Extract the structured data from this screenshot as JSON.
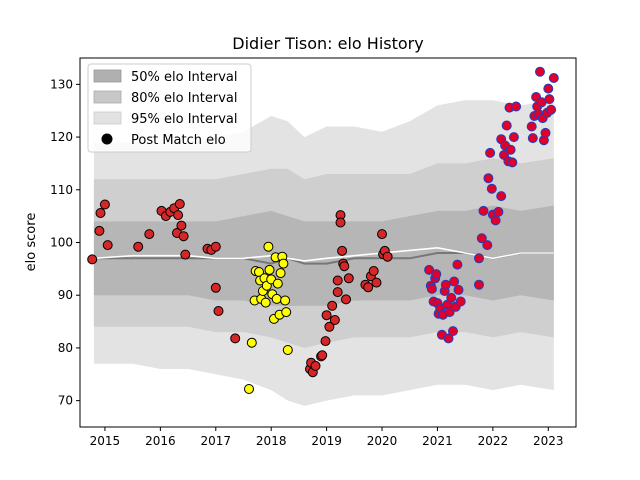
{
  "chart_data": {
    "type": "scatter",
    "title": "Didier Tison: elo History",
    "xlabel": "",
    "ylabel": "elo score",
    "xlim": [
      2014.55,
      2023.5
    ],
    "ylim": [
      65,
      135
    ],
    "x_ticks": [
      2015,
      2016,
      2017,
      2018,
      2019,
      2020,
      2021,
      2022,
      2023
    ],
    "x_tick_labels": [
      "2015",
      "2016",
      "2017",
      "2018",
      "2019",
      "2020",
      "2021",
      "2022",
      "2023"
    ],
    "y_ticks": [
      70,
      80,
      90,
      100,
      110,
      120,
      130
    ],
    "y_tick_labels": [
      "70",
      "80",
      "90",
      "100",
      "110",
      "120",
      "130"
    ],
    "grid": false,
    "legend": {
      "placement": "top-left",
      "entries": [
        "50% elo Interval",
        "80% elo Interval",
        "95% elo Interval",
        "Post Match elo"
      ]
    },
    "bands": {
      "x": [
        2014.8,
        2015.5,
        2016.0,
        2016.5,
        2017.0,
        2017.5,
        2018.0,
        2018.3,
        2018.6,
        2019.0,
        2019.5,
        2020.0,
        2020.5,
        2021.0,
        2021.5,
        2022.0,
        2022.5,
        2023.1
      ],
      "p95_upper": [
        119,
        119,
        119,
        119,
        120,
        121,
        124,
        123,
        120,
        122,
        122,
        121,
        123,
        126,
        127,
        127,
        126,
        127
      ],
      "p80_upper": [
        112,
        112,
        112,
        112,
        112,
        113,
        114,
        114,
        112,
        113,
        113,
        113,
        113,
        115,
        115,
        116,
        115,
        116
      ],
      "p50_upper": [
        104,
        104,
        104,
        104,
        104,
        105,
        106,
        105,
        104,
        104,
        104,
        104,
        105,
        106,
        106,
        107,
        106,
        107
      ],
      "median": [
        97,
        97,
        97,
        97,
        97,
        97,
        96,
        97,
        96,
        96,
        97,
        97,
        97,
        98,
        98,
        97,
        98,
        98
      ],
      "mean": [
        97,
        97.5,
        97.5,
        97.5,
        97,
        97,
        97.5,
        97,
        96.5,
        97,
        97.5,
        98,
        98.5,
        99,
        98,
        97,
        98,
        98
      ],
      "p50_lower": [
        90,
        90,
        90,
        90,
        89,
        89,
        88,
        88,
        88,
        88,
        89,
        89,
        89,
        90,
        90,
        89,
        90,
        89
      ],
      "p80_lower": [
        84,
        84,
        84,
        84,
        83,
        83,
        82,
        81,
        80,
        81,
        82,
        82,
        82,
        83,
        83,
        82,
        83,
        82
      ],
      "p95_lower": [
        77,
        77,
        76,
        76,
        75,
        74,
        72,
        70,
        69,
        70,
        71,
        71,
        72,
        73,
        73,
        72,
        73,
        72
      ]
    },
    "series": [
      {
        "name": "Post Match elo",
        "color": "#d62728",
        "edge": "#000000",
        "points": [
          [
            2014.77,
            96.8
          ],
          [
            2014.9,
            102.2
          ],
          [
            2014.92,
            105.6
          ],
          [
            2015.0,
            107.2
          ],
          [
            2015.05,
            99.5
          ],
          [
            2015.6,
            99.2
          ],
          [
            2015.8,
            101.6
          ],
          [
            2016.02,
            106
          ],
          [
            2016.1,
            105
          ],
          [
            2016.18,
            105.8
          ],
          [
            2016.25,
            106.5
          ],
          [
            2016.3,
            101.8
          ],
          [
            2016.32,
            105.2
          ],
          [
            2016.35,
            107.3
          ],
          [
            2016.38,
            103.2
          ],
          [
            2016.42,
            101.2
          ],
          [
            2016.45,
            97.7
          ],
          [
            2016.85,
            98.8
          ],
          [
            2016.92,
            98.6
          ],
          [
            2017.0,
            99.2
          ],
          [
            2017.0,
            91.4
          ],
          [
            2017.05,
            87.0
          ],
          [
            2017.35,
            81.8
          ],
          [
            2018.7,
            76.0
          ],
          [
            2018.72,
            77.2
          ],
          [
            2018.75,
            75.4
          ],
          [
            2018.8,
            76.6
          ],
          [
            2018.9,
            78.4
          ],
          [
            2018.92,
            78.6
          ],
          [
            2018.98,
            81.3
          ],
          [
            2019.0,
            86.2
          ],
          [
            2019.05,
            84.0
          ],
          [
            2019.1,
            88.0
          ],
          [
            2019.15,
            85.3
          ],
          [
            2019.2,
            90.6
          ],
          [
            2019.2,
            92.8
          ],
          [
            2019.25,
            105.2
          ],
          [
            2019.25,
            103.8
          ],
          [
            2019.28,
            98.4
          ],
          [
            2019.3,
            96.0
          ],
          [
            2019.32,
            95.5
          ],
          [
            2019.35,
            89.2
          ],
          [
            2019.4,
            93.2
          ],
          [
            2019.7,
            92.0
          ],
          [
            2019.75,
            91.5
          ],
          [
            2019.8,
            93.6
          ],
          [
            2019.85,
            94.6
          ],
          [
            2019.9,
            92.4
          ],
          [
            2020.0,
            101.6
          ],
          [
            2020.02,
            97.8
          ],
          [
            2020.05,
            98.4
          ],
          [
            2020.1,
            97.3
          ]
        ]
      },
      {
        "name": "Post Match elo",
        "color": "#ffff00",
        "edge": "#000000",
        "points": [
          [
            2017.6,
            72.2
          ],
          [
            2017.65,
            81.0
          ],
          [
            2017.7,
            89.0
          ],
          [
            2017.72,
            94.6
          ],
          [
            2017.78,
            94.4
          ],
          [
            2017.8,
            92.8
          ],
          [
            2017.82,
            89.3
          ],
          [
            2017.85,
            90.8
          ],
          [
            2017.88,
            93.2
          ],
          [
            2017.9,
            88.6
          ],
          [
            2017.92,
            91.8
          ],
          [
            2017.95,
            99.2
          ],
          [
            2017.97,
            94.8
          ],
          [
            2018.0,
            93.0
          ],
          [
            2018.02,
            90.2
          ],
          [
            2018.05,
            85.5
          ],
          [
            2018.08,
            97.2
          ],
          [
            2018.1,
            89.3
          ],
          [
            2018.12,
            92.2
          ],
          [
            2018.15,
            86.3
          ],
          [
            2018.17,
            94.2
          ],
          [
            2018.2,
            97.3
          ],
          [
            2018.22,
            96.0
          ],
          [
            2018.25,
            89.0
          ],
          [
            2018.27,
            86.8
          ],
          [
            2018.3,
            79.6
          ]
        ]
      },
      {
        "name": "Post Match elo",
        "color": "#e0002a",
        "edge": "#1f3fbf",
        "points": [
          [
            2020.85,
            94.8
          ],
          [
            2020.88,
            91.8
          ],
          [
            2020.9,
            91.2
          ],
          [
            2020.93,
            88.8
          ],
          [
            2020.96,
            93.2
          ],
          [
            2020.98,
            94.0
          ],
          [
            2021.0,
            88.5
          ],
          [
            2021.02,
            86.5
          ],
          [
            2021.05,
            87.5
          ],
          [
            2021.08,
            82.5
          ],
          [
            2021.1,
            86.3
          ],
          [
            2021.13,
            90.8
          ],
          [
            2021.15,
            92.0
          ],
          [
            2021.18,
            88.2
          ],
          [
            2021.2,
            81.8
          ],
          [
            2021.22,
            86.8
          ],
          [
            2021.25,
            89.5
          ],
          [
            2021.28,
            83.2
          ],
          [
            2021.3,
            92.6
          ],
          [
            2021.33,
            87.8
          ],
          [
            2021.36,
            95.8
          ],
          [
            2021.38,
            91.0
          ],
          [
            2021.42,
            88.8
          ],
          [
            2021.75,
            97.0
          ],
          [
            2021.75,
            92.0
          ],
          [
            2021.8,
            100.8
          ],
          [
            2021.83,
            106.0
          ],
          [
            2021.9,
            99.5
          ],
          [
            2021.92,
            112.2
          ],
          [
            2021.95,
            117.0
          ],
          [
            2021.98,
            110.2
          ],
          [
            2022.0,
            105.3
          ],
          [
            2022.05,
            104.2
          ],
          [
            2022.1,
            105.8
          ],
          [
            2022.15,
            119.6
          ],
          [
            2022.15,
            108.8
          ],
          [
            2022.2,
            116.6
          ],
          [
            2022.22,
            118.4
          ],
          [
            2022.25,
            122.2
          ],
          [
            2022.28,
            115.4
          ],
          [
            2022.3,
            125.6
          ],
          [
            2022.32,
            117.6
          ],
          [
            2022.35,
            115.2
          ],
          [
            2022.38,
            120.0
          ],
          [
            2022.42,
            125.8
          ],
          [
            2022.7,
            122.0
          ],
          [
            2022.72,
            119.8
          ],
          [
            2022.75,
            124.0
          ],
          [
            2022.78,
            127.6
          ],
          [
            2022.8,
            125.8
          ],
          [
            2022.82,
            124.4
          ],
          [
            2022.85,
            132.4
          ],
          [
            2022.88,
            126.6
          ],
          [
            2022.9,
            123.6
          ],
          [
            2022.92,
            119.4
          ],
          [
            2022.95,
            120.8
          ],
          [
            2022.98,
            124.6
          ],
          [
            2023.0,
            129.2
          ],
          [
            2023.02,
            127.2
          ],
          [
            2023.05,
            125.2
          ],
          [
            2023.1,
            131.2
          ]
        ]
      }
    ]
  }
}
